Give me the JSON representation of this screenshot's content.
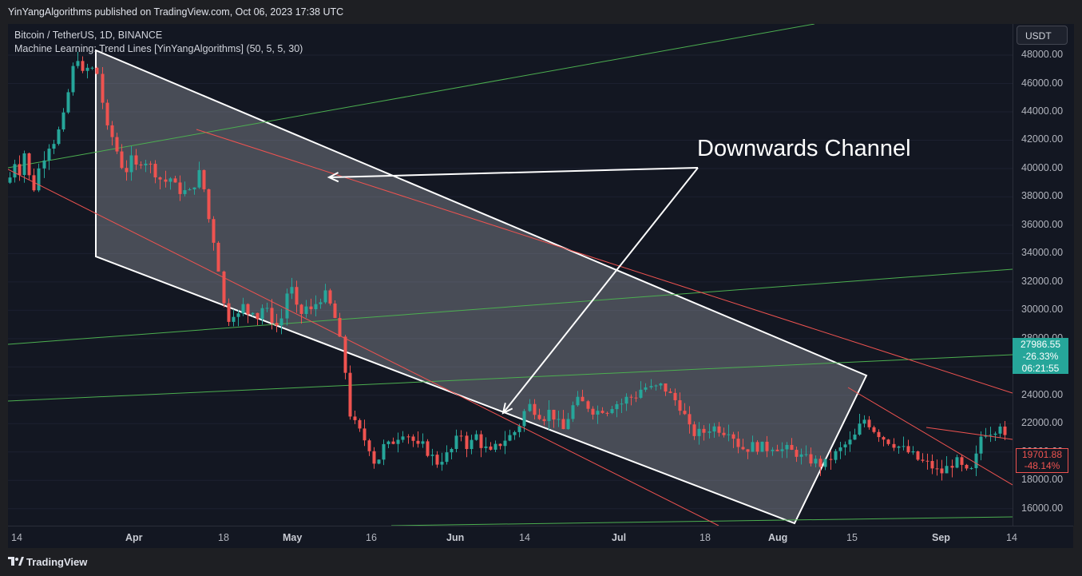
{
  "header": {
    "published": "YinYangAlgorithms published on TradingView.com, Oct 06, 2023 17:38 UTC"
  },
  "legend": {
    "symbol": "Bitcoin / TetherUS, 1D, BINANCE",
    "indicator": "Machine Learning: Trend Lines [YinYangAlgorithms] (50, 5, 5, 30)"
  },
  "annotation": {
    "text": "Downwards Channel"
  },
  "price_axis": {
    "currency": "USDT",
    "labels": [
      "48000.00",
      "46000.00",
      "44000.00",
      "42000.00",
      "40000.00",
      "38000.00",
      "36000.00",
      "34000.00",
      "32000.00",
      "30000.00",
      "28000.00",
      "26000.00",
      "24000.00",
      "22000.00",
      "20000.00",
      "18000.00",
      "16000.00"
    ],
    "current_price": {
      "price": "27986.55",
      "change": "-26.33%",
      "countdown": "06:21:55"
    },
    "last_marker": {
      "price": "19701.88",
      "change": "-48.14%"
    }
  },
  "time_axis": {
    "labels": [
      {
        "text": "14",
        "bold": false
      },
      {
        "text": "Apr",
        "bold": true
      },
      {
        "text": "18",
        "bold": false
      },
      {
        "text": "May",
        "bold": true
      },
      {
        "text": "16",
        "bold": false
      },
      {
        "text": "Jun",
        "bold": true
      },
      {
        "text": "14",
        "bold": false
      },
      {
        "text": "Jul",
        "bold": true
      },
      {
        "text": "18",
        "bold": false
      },
      {
        "text": "Aug",
        "bold": true
      },
      {
        "text": "15",
        "bold": false
      },
      {
        "text": "Sep",
        "bold": true
      },
      {
        "text": "14",
        "bold": false
      }
    ]
  },
  "footer": {
    "brand": "TradingView"
  },
  "colors": {
    "up": "#26a69a",
    "down": "#ef5350",
    "channel": "#ffffff",
    "trend_green": "#4caf50",
    "trend_red": "#ef5350",
    "bg": "#131722"
  },
  "chart_data": {
    "type": "candlestick",
    "title": "Bitcoin / TetherUS, 1D, BINANCE",
    "ylim": [
      14800,
      50200
    ],
    "y_ticks": [
      16000,
      18000,
      20000,
      22000,
      24000,
      26000,
      28000,
      30000,
      32000,
      34000,
      36000,
      38000,
      40000,
      42000,
      44000,
      46000,
      48000
    ],
    "x_ticks": [
      "14",
      "Apr",
      "18",
      "May",
      "16",
      "Jun",
      "14",
      "Jul",
      "18",
      "Aug",
      "15",
      "Sep",
      "14"
    ],
    "series": [
      {
        "name": "BTCUSDT",
        "close_path": [
          [
            0,
            39000
          ],
          [
            8,
            40500
          ],
          [
            14,
            39800
          ],
          [
            20,
            41200
          ],
          [
            26,
            39500
          ],
          [
            31,
            38200
          ],
          [
            36,
            39800
          ],
          [
            42,
            40200
          ],
          [
            48,
            41800
          ],
          [
            54,
            41500
          ],
          [
            60,
            42500
          ],
          [
            66,
            42800
          ],
          [
            72,
            44500
          ],
          [
            80,
            46800
          ],
          [
            86,
            48200
          ],
          [
            92,
            46500
          ],
          [
            98,
            47100
          ],
          [
            104,
            46800
          ],
          [
            108,
            47400
          ],
          [
            114,
            46200
          ],
          [
            118,
            44500
          ],
          [
            124,
            42600
          ],
          [
            130,
            42200
          ],
          [
            136,
            41200
          ],
          [
            142,
            40200
          ],
          [
            148,
            39900
          ],
          [
            154,
            40600
          ],
          [
            160,
            40100
          ],
          [
            168,
            40700
          ],
          [
            176,
            40400
          ],
          [
            182,
            39800
          ],
          [
            188,
            39600
          ],
          [
            194,
            38800
          ],
          [
            200,
            39500
          ],
          [
            206,
            39100
          ],
          [
            212,
            38300
          ],
          [
            218,
            38600
          ],
          [
            224,
            38100
          ],
          [
            230,
            38500
          ],
          [
            236,
            39400
          ],
          [
            242,
            39900
          ],
          [
            246,
            38200
          ],
          [
            252,
            36200
          ],
          [
            258,
            34800
          ],
          [
            264,
            32800
          ],
          [
            270,
            30200
          ],
          [
            276,
            29400
          ],
          [
            282,
            29900
          ],
          [
            288,
            29600
          ],
          [
            294,
            30300
          ],
          [
            300,
            29800
          ],
          [
            306,
            30100
          ],
          [
            312,
            29500
          ],
          [
            318,
            30200
          ],
          [
            324,
            29900
          ],
          [
            330,
            29400
          ],
          [
            336,
            28900
          ],
          [
            342,
            29300
          ],
          [
            348,
            31200
          ],
          [
            354,
            31600
          ],
          [
            360,
            30100
          ],
          [
            366,
            29700
          ],
          [
            372,
            30300
          ],
          [
            378,
            29800
          ],
          [
            384,
            30400
          ],
          [
            390,
            30800
          ],
          [
            396,
            31200
          ],
          [
            402,
            30500
          ],
          [
            408,
            29800
          ],
          [
            414,
            28200
          ],
          [
            420,
            26600
          ],
          [
            426,
            22900
          ],
          [
            432,
            22100
          ],
          [
            438,
            21600
          ],
          [
            444,
            21000
          ],
          [
            450,
            20600
          ],
          [
            456,
            19800
          ],
          [
            460,
            18900
          ],
          [
            466,
            19900
          ],
          [
            472,
            20600
          ],
          [
            478,
            20400
          ],
          [
            484,
            20900
          ],
          [
            490,
            21200
          ],
          [
            496,
            21500
          ],
          [
            502,
            21100
          ],
          [
            508,
            20700
          ],
          [
            514,
            20200
          ],
          [
            520,
            20500
          ],
          [
            526,
            19900
          ],
          [
            532,
            19600
          ],
          [
            538,
            19200
          ],
          [
            544,
            19600
          ],
          [
            550,
            19800
          ],
          [
            556,
            20200
          ],
          [
            562,
            20900
          ],
          [
            568,
            21300
          ],
          [
            574,
            20400
          ],
          [
            580,
            20700
          ],
          [
            586,
            21200
          ],
          [
            592,
            20500
          ],
          [
            598,
            20200
          ],
          [
            604,
            19900
          ],
          [
            610,
            20300
          ],
          [
            616,
            20600
          ],
          [
            622,
            20900
          ],
          [
            628,
            21100
          ],
          [
            634,
            21400
          ],
          [
            640,
            21900
          ],
          [
            646,
            22800
          ],
          [
            652,
            23300
          ],
          [
            658,
            23000
          ],
          [
            664,
            22700
          ],
          [
            670,
            22400
          ],
          [
            676,
            22900
          ],
          [
            682,
            22600
          ],
          [
            688,
            22100
          ],
          [
            694,
            21400
          ],
          [
            700,
            22300
          ],
          [
            706,
            23100
          ],
          [
            712,
            23600
          ],
          [
            718,
            23500
          ],
          [
            724,
            23300
          ],
          [
            730,
            23000
          ],
          [
            736,
            22800
          ],
          [
            742,
            23100
          ],
          [
            748,
            22900
          ],
          [
            754,
            23200
          ],
          [
            760,
            23500
          ],
          [
            766,
            23300
          ],
          [
            772,
            23700
          ],
          [
            778,
            23900
          ],
          [
            784,
            23800
          ],
          [
            790,
            24300
          ],
          [
            796,
            24600
          ],
          [
            802,
            24500
          ],
          [
            808,
            24400
          ],
          [
            814,
            24700
          ],
          [
            820,
            24600
          ],
          [
            826,
            24200
          ],
          [
            832,
            23800
          ],
          [
            838,
            23500
          ],
          [
            844,
            23000
          ],
          [
            850,
            22100
          ],
          [
            856,
            21200
          ],
          [
            862,
            21400
          ],
          [
            868,
            21300
          ],
          [
            874,
            21500
          ],
          [
            880,
            21800
          ],
          [
            886,
            21700
          ],
          [
            892,
            21600
          ],
          [
            898,
            21400
          ],
          [
            904,
            21700
          ],
          [
            910,
            20800
          ],
          [
            916,
            20400
          ],
          [
            922,
            20200
          ],
          [
            928,
            20300
          ],
          [
            934,
            20500
          ],
          [
            940,
            20300
          ],
          [
            946,
            20400
          ],
          [
            952,
            20200
          ],
          [
            958,
            20500
          ],
          [
            964,
            20300
          ],
          [
            970,
            20100
          ],
          [
            976,
            20200
          ],
          [
            982,
            20000
          ],
          [
            988,
            19900
          ],
          [
            994,
            19600
          ],
          [
            1000,
            19500
          ],
          [
            1006,
            19400
          ],
          [
            1012,
            19300
          ],
          [
            1018,
            19100
          ],
          [
            1024,
            19200
          ],
          [
            1030,
            19600
          ],
          [
            1036,
            19900
          ],
          [
            1042,
            20200
          ],
          [
            1048,
            20500
          ],
          [
            1054,
            20700
          ],
          [
            1060,
            21100
          ],
          [
            1066,
            21800
          ],
          [
            1072,
            22300
          ],
          [
            1078,
            22000
          ],
          [
            1084,
            21600
          ],
          [
            1090,
            21300
          ],
          [
            1096,
            21000
          ],
          [
            1102,
            20800
          ],
          [
            1108,
            20600
          ],
          [
            1114,
            20400
          ],
          [
            1120,
            20200
          ],
          [
            1126,
            20000
          ],
          [
            1132,
            19800
          ],
          [
            1138,
            19500
          ],
          [
            1144,
            19300
          ],
          [
            1150,
            19200
          ],
          [
            1156,
            19000
          ],
          [
            1162,
            18700
          ],
          [
            1168,
            18500
          ],
          [
            1174,
            18800
          ],
          [
            1180,
            19100
          ],
          [
            1186,
            19400
          ],
          [
            1192,
            19000
          ],
          [
            1198,
            18600
          ],
          [
            1204,
            18400
          ],
          [
            1210,
            19200
          ],
          [
            1216,
            20600
          ],
          [
            1220,
            21600
          ],
          [
            1226,
            21400
          ],
          [
            1232,
            21500
          ],
          [
            1238,
            21700
          ],
          [
            1244,
            22200
          ],
          [
            1248,
            21000
          ],
          [
            1254,
            19700
          ]
        ]
      }
    ],
    "trend_lines": {
      "channel_polygon": [
        [
          110,
          33
        ],
        [
          1075,
          440
        ],
        [
          985,
          625
        ],
        [
          110,
          291
        ]
      ],
      "red_lines": [
        [
          [
            0,
            182
          ],
          [
            890,
            628
          ]
        ],
        [
          [
            236,
            132
          ],
          [
            1258,
            462
          ]
        ],
        [
          [
            1052,
            455
          ],
          [
            1258,
            577
          ]
        ],
        [
          [
            1150,
            505
          ],
          [
            1258,
            520
          ]
        ]
      ],
      "green_lines": [
        [
          [
            0,
            180
          ],
          [
            1010,
            0
          ]
        ],
        [
          [
            0,
            401
          ],
          [
            1258,
            307
          ]
        ],
        [
          [
            0,
            472
          ],
          [
            1258,
            414
          ]
        ],
        [
          [
            480,
            628
          ],
          [
            1258,
            617
          ]
        ]
      ],
      "arrows": [
        [
          [
            864,
            180
          ],
          [
            402,
            192
          ]
        ],
        [
          [
            864,
            180
          ],
          [
            620,
            487
          ]
        ]
      ]
    }
  }
}
